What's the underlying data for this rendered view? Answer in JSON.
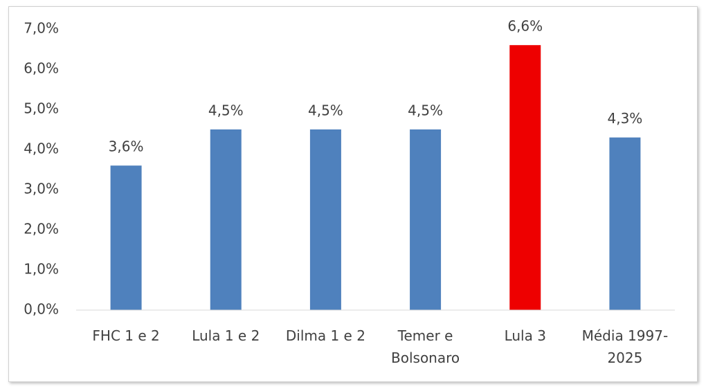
{
  "chart_data": {
    "type": "bar",
    "categories": [
      "FHC 1 e 2",
      "Lula 1 e 2",
      "Dilma 1 e 2",
      "Temer e Bolsonaro",
      "Lula 3",
      "Média 1997-2025"
    ],
    "values": [
      3.6,
      4.5,
      4.5,
      4.5,
      6.6,
      4.3
    ],
    "value_labels": [
      "3,6%",
      "4,5%",
      "4,5%",
      "4,5%",
      "6,6%",
      "4,3%"
    ],
    "colors": [
      "#4f81bd",
      "#4f81bd",
      "#4f81bd",
      "#4f81bd",
      "#ee0000",
      "#4f81bd"
    ],
    "ylim": [
      0,
      7
    ],
    "yticks": [
      {
        "value": 0,
        "label": "0,0%"
      },
      {
        "value": 1,
        "label": "1,0%"
      },
      {
        "value": 2,
        "label": "2,0%"
      },
      {
        "value": 3,
        "label": "3,0%"
      },
      {
        "value": 4,
        "label": "4,0%"
      },
      {
        "value": 5,
        "label": "5,0%"
      },
      {
        "value": 6,
        "label": "6,0%"
      },
      {
        "value": 7,
        "label": "7,0%"
      }
    ],
    "grid": false
  }
}
